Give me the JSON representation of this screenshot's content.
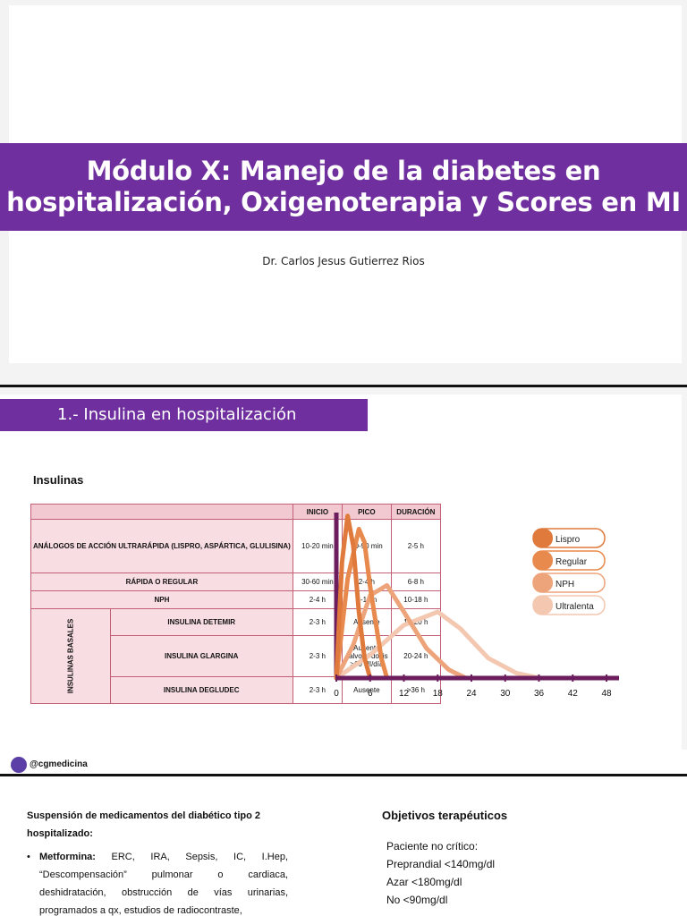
{
  "slide1": {
    "title_line1": "Módulo X: Manejo de la diabetes en",
    "title_line2": "hospitalización, Oxigenoterapia y Scores en MI",
    "author": "Dr. Carlos Jesus Gutierrez Rios",
    "accent_color": "#6f2f9e"
  },
  "slide2": {
    "section_title": "1.- Insulina en hospitalización",
    "label": "Insulinas",
    "table": {
      "headers": [
        "INICIO",
        "PICO",
        "DURACIÓN"
      ],
      "rows": [
        {
          "name": "ANÁLOGOS DE ACCIÓN ULTRARÁPIDA (LISPRO, ASPÁRTICA, GLULISINA)",
          "inicio": "10-20 min",
          "pico": "30-90 min",
          "duracion": "2-5 h"
        },
        {
          "name": "RÁPIDA O REGULAR",
          "inicio": "30-60 min",
          "pico": "2-4 h",
          "duracion": "6-8 h"
        },
        {
          "name": "NPH",
          "inicio": "2-4 h",
          "pico": "6-10 h",
          "duracion": "10-18 h"
        },
        {
          "name": "INSULINA DETEMIR",
          "inicio": "2-3 h",
          "pico": "Ausente",
          "duracion": "16-20 h"
        },
        {
          "name": "INSULINA GLARGINA",
          "inicio": "2-3 h",
          "pico": "Ausente salvo si dosis >60 UI/día",
          "duracion": "20-24 h"
        },
        {
          "name": "INSULINA DEGLUDEC",
          "inicio": "2-3 h",
          "pico": "Ausente",
          "duracion": ">36 h"
        }
      ],
      "group_label": "INSULINAS BASALES"
    },
    "handle": "@cgmedicina"
  },
  "chart_data": {
    "type": "line",
    "x_ticks": [
      0,
      6,
      12,
      18,
      24,
      30,
      36,
      42,
      48
    ],
    "xlim": [
      0,
      48
    ],
    "ylim": [
      0,
      1
    ],
    "series": [
      {
        "name": "Lispro",
        "color": "#e07a3c",
        "x": [
          0,
          1,
          2,
          3,
          4,
          5,
          6
        ],
        "y": [
          0,
          0.7,
          0.98,
          0.8,
          0.4,
          0.12,
          0
        ]
      },
      {
        "name": "Regular",
        "color": "#e8894d",
        "x": [
          0,
          2,
          4,
          5,
          6,
          8,
          9
        ],
        "y": [
          0,
          0.6,
          0.9,
          0.82,
          0.55,
          0.12,
          0
        ]
      },
      {
        "name": "NPH",
        "color": "#eea47a",
        "x": [
          0,
          3,
          6,
          9,
          12,
          16,
          20,
          23
        ],
        "y": [
          0,
          0.2,
          0.5,
          0.56,
          0.4,
          0.18,
          0.05,
          0
        ]
      },
      {
        "name": "Ultralenta",
        "color": "#f3c7b0",
        "x": [
          0,
          6,
          12,
          18,
          22,
          27,
          32,
          36
        ],
        "y": [
          0,
          0.14,
          0.32,
          0.4,
          0.3,
          0.12,
          0.03,
          0
        ]
      }
    ],
    "legend_position": "right"
  },
  "slide3": {
    "susp_title": "Suspensión de medicamentos del diabético tipo 2 hospitalizado:",
    "met_bold": "Metformina:",
    "met_text": " ERC, IRA, Sepsis, IC, I.Hep, “Descompensación” pulmonar o cardiaca, deshidratación, obstrucción de vías urinarias, programados a qx, estudios de radiocontraste,",
    "obj_title": "Objetivos terapéuticos",
    "obj_items": [
      "Paciente no crítico:",
      "Preprandial <140mg/dl",
      "Azar <180mg/dl",
      "No <90mg/dl"
    ]
  }
}
